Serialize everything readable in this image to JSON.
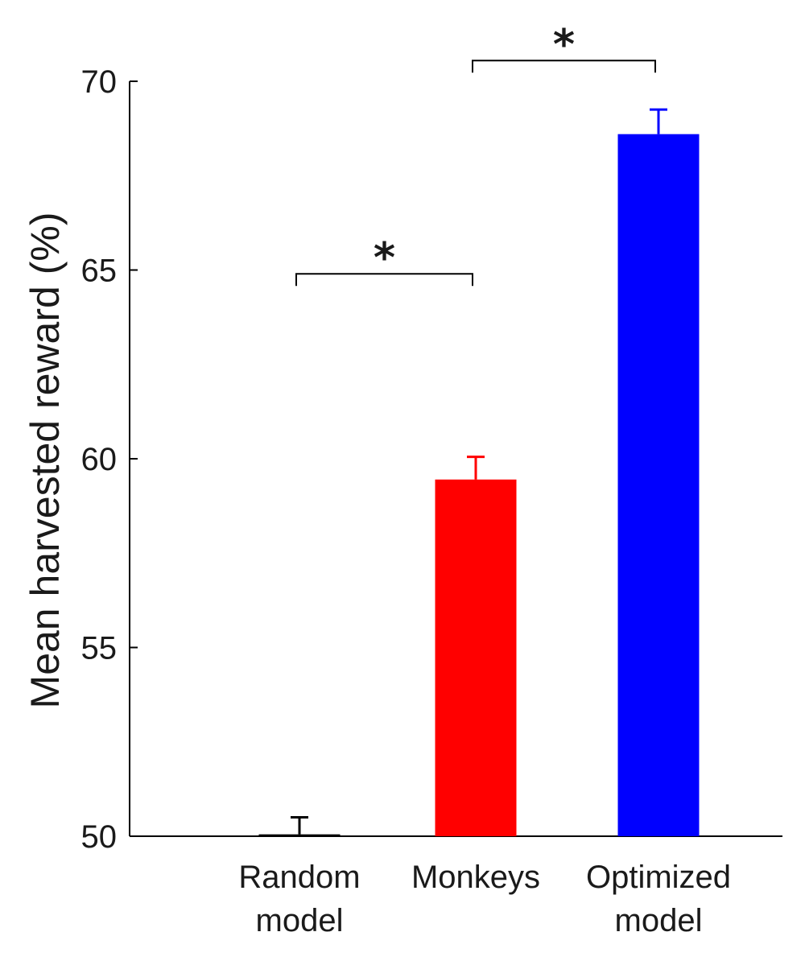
{
  "chart_data": {
    "type": "bar",
    "categories": [
      [
        "Random",
        "model"
      ],
      [
        "Monkeys"
      ],
      [
        "Optimized",
        "model"
      ]
    ],
    "values": [
      50.05,
      59.45,
      68.6
    ],
    "errors": [
      0.45,
      0.6,
      0.65
    ],
    "colors": [
      "#000000",
      "#ff0000",
      "#0000ff"
    ],
    "ylabel": "Mean harvested reward (%)",
    "xlabel": "",
    "title": "",
    "ylim": [
      50,
      70
    ],
    "yticks": [
      50,
      55,
      60,
      65,
      70
    ],
    "grid": false,
    "significance": [
      {
        "from": 0,
        "to": 1,
        "label": "*",
        "y": 64.9
      },
      {
        "from": 1,
        "to": 2,
        "label": "*",
        "y": 70.55
      }
    ]
  }
}
